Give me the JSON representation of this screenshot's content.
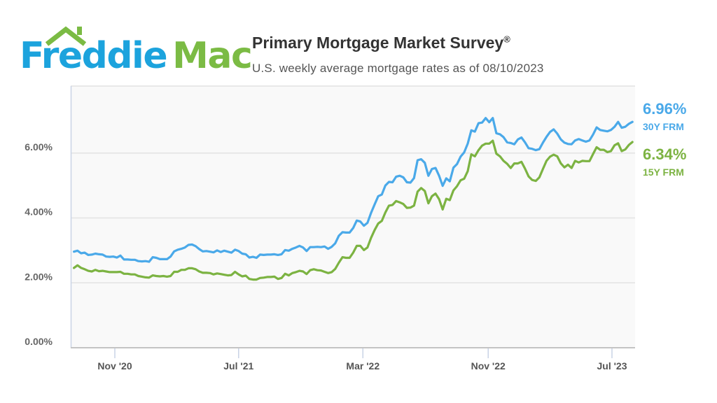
{
  "logo": {
    "text_a": "Freddie",
    "text_b": "Mac",
    "color_a": "#1ca3dd",
    "color_b": "#7bbb44"
  },
  "header": {
    "title": "Primary Mortgage Market Survey",
    "title_mark": "®",
    "subtitle": "U.S. weekly average mortgage rates as of 08/10/2023"
  },
  "chart_data": {
    "type": "line",
    "title": "Primary Mortgage Market Survey®",
    "subtitle": "U.S. weekly average mortgage rates as of 08/10/2023",
    "xlabel": "",
    "ylabel": "",
    "ylim": [
      0,
      8
    ],
    "yticks": [
      "0.00%",
      "2.00%",
      "4.00%",
      "6.00%"
    ],
    "ytick_values": [
      0,
      2,
      4,
      6
    ],
    "xticks": [
      "Nov '20",
      "Jul '21",
      "Mar '22",
      "Nov '22",
      "Jul '23"
    ],
    "xtick_dates": [
      "2020-11-01",
      "2021-07-01",
      "2022-03-01",
      "2022-11-01",
      "2023-07-01"
    ],
    "xlim": [
      "2020-08-13",
      "2023-08-10"
    ],
    "grid": "horizontal",
    "legend": "right (end labels)",
    "x": [
      "2020-08-13",
      "2020-08-20",
      "2020-08-27",
      "2020-09-03",
      "2020-09-10",
      "2020-09-17",
      "2020-09-24",
      "2020-10-01",
      "2020-10-08",
      "2020-10-15",
      "2020-10-22",
      "2020-10-29",
      "2020-11-05",
      "2020-11-12",
      "2020-11-19",
      "2020-11-26",
      "2020-12-03",
      "2020-12-10",
      "2020-12-17",
      "2020-12-24",
      "2020-12-31",
      "2021-01-07",
      "2021-01-14",
      "2021-01-21",
      "2021-01-28",
      "2021-02-04",
      "2021-02-11",
      "2021-02-18",
      "2021-02-25",
      "2021-03-04",
      "2021-03-11",
      "2021-03-18",
      "2021-03-25",
      "2021-04-01",
      "2021-04-08",
      "2021-04-15",
      "2021-04-22",
      "2021-04-29",
      "2021-05-06",
      "2021-05-13",
      "2021-05-20",
      "2021-05-27",
      "2021-06-03",
      "2021-06-10",
      "2021-06-17",
      "2021-06-24",
      "2021-07-01",
      "2021-07-08",
      "2021-07-15",
      "2021-07-22",
      "2021-07-29",
      "2021-08-05",
      "2021-08-12",
      "2021-08-19",
      "2021-08-26",
      "2021-09-02",
      "2021-09-09",
      "2021-09-16",
      "2021-09-23",
      "2021-09-30",
      "2021-10-07",
      "2021-10-14",
      "2021-10-21",
      "2021-10-28",
      "2021-11-04",
      "2021-11-11",
      "2021-11-18",
      "2021-11-25",
      "2021-12-02",
      "2021-12-09",
      "2021-12-16",
      "2021-12-23",
      "2021-12-30",
      "2022-01-06",
      "2022-01-13",
      "2022-01-20",
      "2022-01-27",
      "2022-02-03",
      "2022-02-10",
      "2022-02-17",
      "2022-02-24",
      "2022-03-03",
      "2022-03-10",
      "2022-03-17",
      "2022-03-24",
      "2022-03-31",
      "2022-04-07",
      "2022-04-14",
      "2022-04-21",
      "2022-04-28",
      "2022-05-05",
      "2022-05-12",
      "2022-05-19",
      "2022-05-26",
      "2022-06-02",
      "2022-06-09",
      "2022-06-16",
      "2022-06-23",
      "2022-06-30",
      "2022-07-07",
      "2022-07-14",
      "2022-07-21",
      "2022-07-28",
      "2022-08-04",
      "2022-08-11",
      "2022-08-18",
      "2022-08-25",
      "2022-09-01",
      "2022-09-08",
      "2022-09-15",
      "2022-09-22",
      "2022-09-29",
      "2022-10-06",
      "2022-10-13",
      "2022-10-20",
      "2022-10-27",
      "2022-11-03",
      "2022-11-10",
      "2022-11-17",
      "2022-11-24",
      "2022-12-01",
      "2022-12-08",
      "2022-12-15",
      "2022-12-22",
      "2022-12-29",
      "2023-01-05",
      "2023-01-12",
      "2023-01-19",
      "2023-01-26",
      "2023-02-02",
      "2023-02-09",
      "2023-02-16",
      "2023-02-23",
      "2023-03-02",
      "2023-03-09",
      "2023-03-16",
      "2023-03-23",
      "2023-03-30",
      "2023-04-06",
      "2023-04-13",
      "2023-04-20",
      "2023-04-27",
      "2023-05-04",
      "2023-05-11",
      "2023-05-18",
      "2023-05-25",
      "2023-06-01",
      "2023-06-08",
      "2023-06-15",
      "2023-06-22",
      "2023-06-29",
      "2023-07-06",
      "2023-07-13",
      "2023-07-20",
      "2023-07-27",
      "2023-08-03",
      "2023-08-10"
    ],
    "series": [
      {
        "name": "30Y FRM",
        "last_label": "6.96%",
        "color": "#4aa9e9",
        "values": [
          2.96,
          2.99,
          2.91,
          2.93,
          2.86,
          2.87,
          2.9,
          2.88,
          2.87,
          2.81,
          2.8,
          2.81,
          2.78,
          2.84,
          2.72,
          2.72,
          2.71,
          2.71,
          2.67,
          2.66,
          2.67,
          2.65,
          2.79,
          2.77,
          2.73,
          2.73,
          2.73,
          2.81,
          2.97,
          3.02,
          3.05,
          3.09,
          3.17,
          3.18,
          3.13,
          3.04,
          2.97,
          2.98,
          2.96,
          2.94,
          3.0,
          2.95,
          2.99,
          2.96,
          2.93,
          3.02,
          2.98,
          2.9,
          2.88,
          2.78,
          2.8,
          2.77,
          2.87,
          2.86,
          2.87,
          2.87,
          2.88,
          2.86,
          2.88,
          3.01,
          2.99,
          3.05,
          3.09,
          3.14,
          3.09,
          2.98,
          3.1,
          3.1,
          3.11,
          3.1,
          3.12,
          3.05,
          3.11,
          3.22,
          3.45,
          3.56,
          3.55,
          3.55,
          3.69,
          3.92,
          3.89,
          3.76,
          3.85,
          4.16,
          4.42,
          4.67,
          4.72,
          5.0,
          5.11,
          5.1,
          5.27,
          5.3,
          5.25,
          5.1,
          5.09,
          5.23,
          5.78,
          5.81,
          5.7,
          5.3,
          5.51,
          5.54,
          5.3,
          4.99,
          5.22,
          5.13,
          5.55,
          5.66,
          5.89,
          6.02,
          6.29,
          6.7,
          6.66,
          6.92,
          6.94,
          7.08,
          6.95,
          7.08,
          6.61,
          6.58,
          6.49,
          6.33,
          6.31,
          6.27,
          6.42,
          6.48,
          6.33,
          6.15,
          6.13,
          6.09,
          6.12,
          6.32,
          6.5,
          6.65,
          6.73,
          6.6,
          6.42,
          6.32,
          6.28,
          6.27,
          6.39,
          6.43,
          6.39,
          6.35,
          6.39,
          6.57,
          6.79,
          6.71,
          6.69,
          6.67,
          6.71,
          6.81,
          6.96,
          6.78,
          6.81,
          6.9,
          6.96
        ]
      },
      {
        "name": "15Y FRM",
        "last_label": "6.34%",
        "color": "#7cb342",
        "values": [
          2.46,
          2.54,
          2.46,
          2.42,
          2.37,
          2.35,
          2.4,
          2.36,
          2.37,
          2.35,
          2.33,
          2.33,
          2.33,
          2.34,
          2.28,
          2.28,
          2.26,
          2.26,
          2.21,
          2.19,
          2.17,
          2.16,
          2.23,
          2.21,
          2.2,
          2.21,
          2.19,
          2.21,
          2.34,
          2.34,
          2.4,
          2.4,
          2.45,
          2.45,
          2.42,
          2.35,
          2.31,
          2.31,
          2.3,
          2.26,
          2.29,
          2.27,
          2.25,
          2.23,
          2.24,
          2.34,
          2.26,
          2.2,
          2.22,
          2.12,
          2.1,
          2.1,
          2.15,
          2.16,
          2.18,
          2.18,
          2.19,
          2.12,
          2.15,
          2.28,
          2.23,
          2.3,
          2.33,
          2.37,
          2.35,
          2.27,
          2.39,
          2.42,
          2.39,
          2.38,
          2.34,
          2.3,
          2.33,
          2.43,
          2.62,
          2.79,
          2.77,
          2.77,
          2.93,
          3.14,
          3.14,
          3.01,
          3.09,
          3.39,
          3.63,
          3.83,
          3.91,
          4.17,
          4.38,
          4.4,
          4.52,
          4.48,
          4.43,
          4.31,
          4.32,
          4.38,
          4.81,
          4.92,
          4.83,
          4.45,
          4.67,
          4.75,
          4.58,
          4.26,
          4.59,
          4.55,
          4.85,
          4.98,
          5.16,
          5.21,
          5.44,
          5.96,
          5.9,
          6.09,
          6.23,
          6.29,
          6.29,
          6.38,
          5.98,
          5.9,
          5.76,
          5.67,
          5.54,
          5.68,
          5.68,
          5.73,
          5.52,
          5.28,
          5.17,
          5.14,
          5.25,
          5.51,
          5.76,
          5.89,
          5.95,
          5.9,
          5.68,
          5.56,
          5.64,
          5.54,
          5.76,
          5.71,
          5.76,
          5.75,
          5.75,
          5.97,
          6.18,
          6.1,
          6.1,
          6.03,
          6.06,
          6.24,
          6.3,
          6.06,
          6.11,
          6.25,
          6.34
        ]
      }
    ]
  }
}
